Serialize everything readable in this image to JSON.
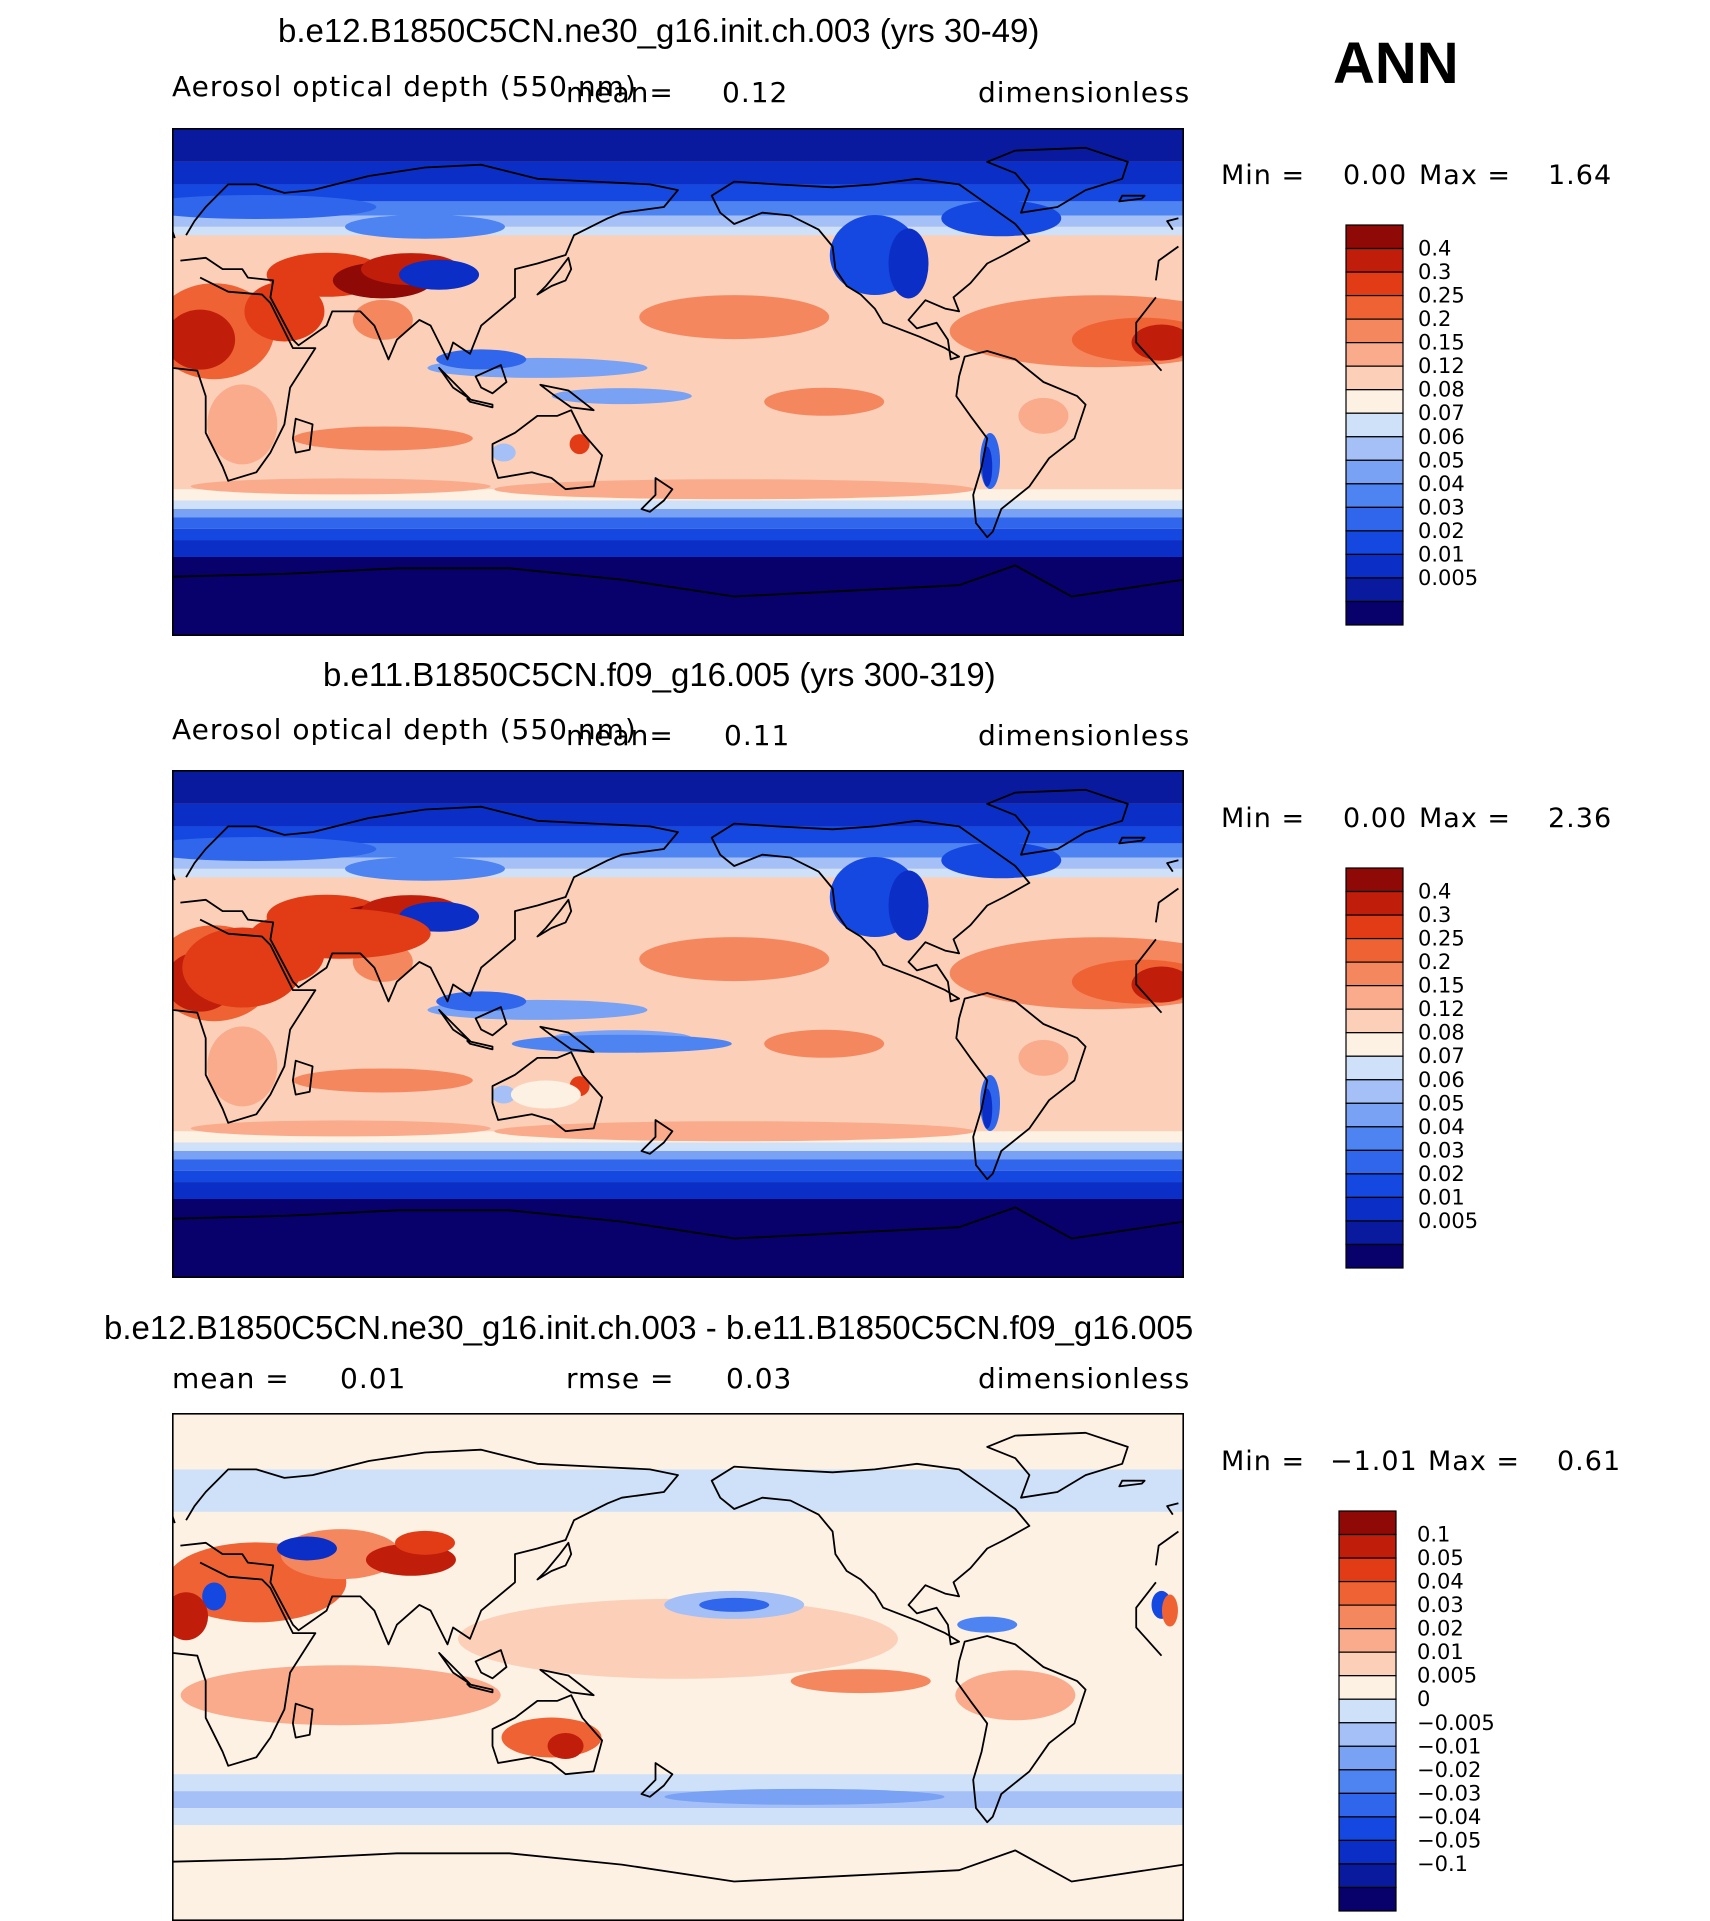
{
  "season": "ANN",
  "palette_ratio": [
    "#08006b",
    "#0a1a9e",
    "#0b2fc6",
    "#1548e0",
    "#2f66ec",
    "#4d84f2",
    "#79a2f4",
    "#a4c0f6",
    "#cfe0f9",
    "#fdf1e4",
    "#fcd0b8",
    "#f9ab8b",
    "#f5875f",
    "#ef6233",
    "#e13c16",
    "#c01d0a",
    "#8f0906"
  ],
  "palette_diff": [
    "#08006b",
    "#0a1a9e",
    "#0b2fc6",
    "#1548e0",
    "#2f66ec",
    "#4d84f2",
    "#79a2f4",
    "#a4c0f6",
    "#cfe0f9",
    "#fdf1e4",
    "#fcd0b8",
    "#f9ab8b",
    "#f5875f",
    "#ef6233",
    "#e13c16",
    "#c01d0a",
    "#8f0906"
  ],
  "chart_data": [
    {
      "type": "heatmap",
      "title": "b.e12.B1850C5CN.ne30_g16.init.ch.003 (yrs 30-49)",
      "variable": "Aerosol optical depth (550 nm)",
      "mean_label": "mean=",
      "mean": "0.12",
      "units": "dimensionless",
      "min_label": "Min =",
      "min": "0.00",
      "max_label": "Max =",
      "max": "1.64",
      "colorbar_levels": [
        "0.4",
        "0.3",
        "0.25",
        "0.2",
        "0.15",
        "0.12",
        "0.08",
        "0.07",
        "0.06",
        "0.05",
        "0.04",
        "0.03",
        "0.02",
        "0.01",
        "0.005"
      ]
    },
    {
      "type": "heatmap",
      "title": "b.e11.B1850C5CN.f09_g16.005 (yrs 300-319)",
      "variable": "Aerosol optical depth (550 nm)",
      "mean_label": "mean=",
      "mean": "0.11",
      "units": "dimensionless",
      "min_label": "Min =",
      "min": "0.00",
      "max_label": "Max =",
      "max": "2.36",
      "colorbar_levels": [
        "0.4",
        "0.3",
        "0.25",
        "0.2",
        "0.15",
        "0.12",
        "0.08",
        "0.07",
        "0.06",
        "0.05",
        "0.04",
        "0.03",
        "0.02",
        "0.01",
        "0.005"
      ]
    },
    {
      "type": "heatmap",
      "title": "b.e12.B1850C5CN.ne30_g16.init.ch.003 - b.e11.B1850C5CN.f09_g16.005",
      "mean_label": "mean =",
      "mean": "0.01",
      "rmse_label": "rmse =",
      "rmse": "0.03",
      "units": "dimensionless",
      "min_label": "Min =",
      "min": "−1.01",
      "max_label": "Max =",
      "max": "0.61",
      "colorbar_levels": [
        "0.1",
        "0.05",
        "0.04",
        "0.03",
        "0.02",
        "0.01",
        "0.005",
        "0",
        "−0.005",
        "−0.01",
        "−0.02",
        "−0.03",
        "−0.04",
        "−0.05",
        "−0.1"
      ]
    }
  ]
}
